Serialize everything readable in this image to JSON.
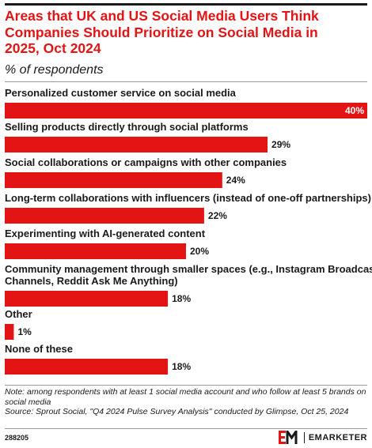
{
  "header": {
    "title": "Areas that UK and US Social Media Users Think Companies Should Prioritize on Social Media in 2025, Oct 2024",
    "subtitle": "% of respondents"
  },
  "chart_data": {
    "type": "bar",
    "orientation": "horizontal",
    "categories": [
      "Personalized customer service on social media",
      "Selling products directly through social platforms",
      "Social collaborations or campaigns with other companies",
      "Long-term collaborations with influencers (instead of one-off partnerships)",
      "Experimenting with AI-generated content",
      "Community management through smaller spaces (e.g., Instagram Broadcast Channels, Reddit Ask Me Anything)",
      "Other",
      "None of these"
    ],
    "values": [
      40,
      29,
      24,
      22,
      20,
      18,
      1,
      18
    ],
    "value_labels": [
      "40%",
      "29%",
      "24%",
      "22%",
      "20%",
      "18%",
      "1%",
      "18%"
    ],
    "xlim": [
      0,
      40
    ],
    "bar_color": "#e31414",
    "grid": false,
    "legend": "none"
  },
  "footer": {
    "note": "Note: among respondents with at least 1 social media account and who follow at least 5 brands on social media",
    "source": "Source: Sprout Social, \"Q4 2024 Pulse Survey Analysis\" conducted by Glimpse, Oct 25, 2024",
    "chart_id": "288205",
    "brand": "EMARKETER"
  }
}
